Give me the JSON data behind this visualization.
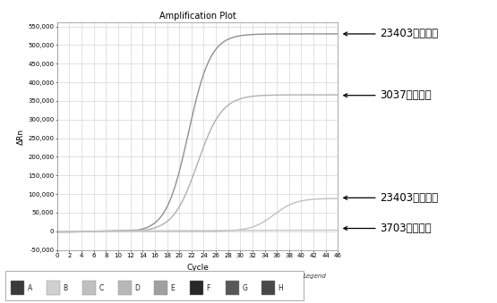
{
  "title": "Amplification Plot",
  "xlabel": "Cycle",
  "ylabel": "ΔRn",
  "xlim": [
    0,
    46
  ],
  "ylim": [
    -50000,
    560000
  ],
  "yticks": [
    -50000,
    0,
    50000,
    100000,
    150000,
    200000,
    250000,
    300000,
    350000,
    400000,
    450000,
    500000,
    550000
  ],
  "xticks": [
    0,
    2,
    4,
    6,
    8,
    10,
    12,
    14,
    16,
    18,
    20,
    22,
    24,
    26,
    28,
    30,
    32,
    34,
    36,
    38,
    40,
    42,
    44,
    46
  ],
  "ann_texts": [
    "23403阳性对照",
    "3037阳性对照",
    "23403阴性对照",
    "3703阴性对照"
  ],
  "ann_ydata": [
    530000,
    365000,
    90000,
    8000
  ],
  "legend_labels": [
    "A",
    "B",
    "C",
    "D",
    "E",
    "F",
    "G",
    "H"
  ],
  "legend_colors": [
    "#3a3a3a",
    "#d0d0d0",
    "#c0c0c0",
    "#b8b8b8",
    "#a0a0a0",
    "#282828",
    "#585858",
    "#484848"
  ],
  "bg_color": "#ffffff",
  "grid_color": "#cccccc",
  "curve_colors": [
    "#909090",
    "#b0b0b0",
    "#c0c0c0",
    "#c8c8c8"
  ],
  "curve_lw": 1.0
}
